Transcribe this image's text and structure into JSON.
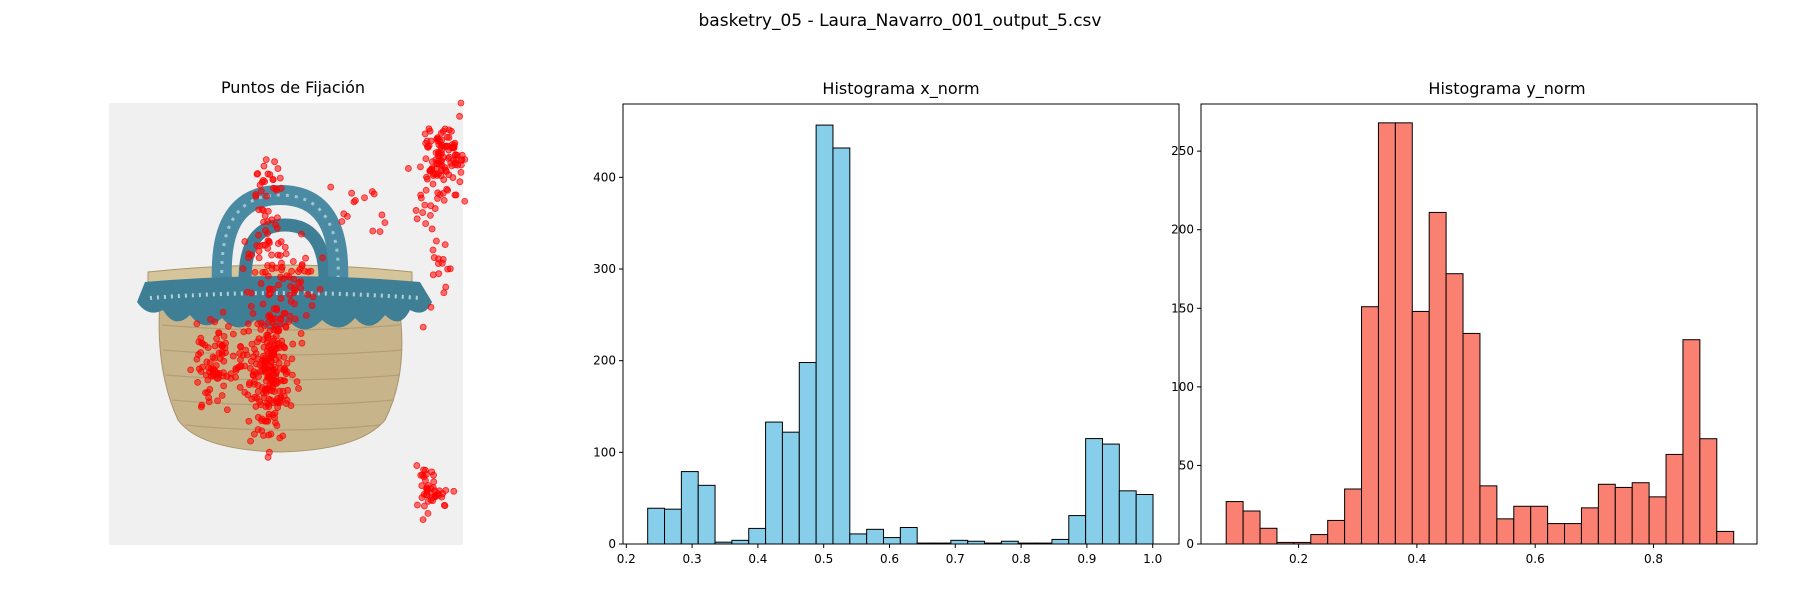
{
  "suptitle": "basketry_05 - Laura_Navarro_001_output_5.csv",
  "colors": {
    "hist_x_fill": "#87ceeb",
    "hist_y_fill": "#fa8072",
    "fixation": "#ff0000",
    "image_bg": "#f0f0f0",
    "basket_straw": "#c8b48a",
    "basket_fabric": "#3f7f96"
  },
  "chart_data": [
    {
      "type": "scatter",
      "title": "Puntos de Fijación",
      "background_image": "basket with blue patterned fabric liner and handles",
      "axes_visible": false,
      "marker": "red semi-transparent circles",
      "note_units": "x_norm / y_norm (0-1, y measured from top of image)",
      "clusters": [
        {
          "x": 0.46,
          "y": 0.6,
          "sx": 0.03,
          "sy": 0.09,
          "n": 220
        },
        {
          "x": 0.29,
          "y": 0.58,
          "sx": 0.025,
          "sy": 0.05,
          "n": 70
        },
        {
          "x": 0.38,
          "y": 0.6,
          "sx": 0.04,
          "sy": 0.04,
          "n": 40
        },
        {
          "x": 0.45,
          "y": 0.2,
          "sx": 0.02,
          "sy": 0.07,
          "n": 40
        },
        {
          "x": 0.44,
          "y": 0.36,
          "sx": 0.05,
          "sy": 0.03,
          "n": 30
        },
        {
          "x": 0.53,
          "y": 0.42,
          "sx": 0.03,
          "sy": 0.04,
          "n": 30
        },
        {
          "x": 0.95,
          "y": 0.12,
          "sx": 0.03,
          "sy": 0.04,
          "n": 90
        },
        {
          "x": 0.91,
          "y": 0.18,
          "sx": 0.02,
          "sy": 0.05,
          "n": 30
        },
        {
          "x": 0.92,
          "y": 0.4,
          "sx": 0.02,
          "sy": 0.09,
          "n": 20
        },
        {
          "x": 0.91,
          "y": 0.88,
          "sx": 0.02,
          "sy": 0.03,
          "n": 45
        },
        {
          "x": 0.7,
          "y": 0.25,
          "sx": 0.05,
          "sy": 0.03,
          "n": 14
        }
      ]
    },
    {
      "type": "bar",
      "title": "Histograma x_norm",
      "xlim": [
        0.195,
        1.04
      ],
      "ylim": [
        0,
        480
      ],
      "xticks": [
        "0.2",
        "0.3",
        "0.4",
        "0.5",
        "0.6",
        "0.7",
        "0.8",
        "0.9",
        "1.0"
      ],
      "xtick_values": [
        0.2,
        0.3,
        0.4,
        0.5,
        0.6,
        0.7,
        0.8,
        0.9,
        1.0
      ],
      "yticks": [
        "0",
        "100",
        "200",
        "300",
        "400"
      ],
      "ytick_values": [
        0,
        100,
        200,
        300,
        400
      ],
      "bin_start": 0.2325,
      "bin_width": 0.0256,
      "values": [
        39,
        38,
        79,
        64,
        2,
        4,
        17,
        133,
        122,
        198,
        457,
        432,
        11,
        16,
        7,
        18,
        1,
        1,
        4,
        3,
        1,
        3,
        1,
        1,
        5,
        31,
        115,
        109,
        58,
        54
      ]
    },
    {
      "type": "bar",
      "title": "Histograma y_norm",
      "xlim": [
        0.035,
        0.975
      ],
      "ylim": [
        0,
        280
      ],
      "xticks": [
        "0.2",
        "0.4",
        "0.6",
        "0.8"
      ],
      "xtick_values": [
        0.2,
        0.4,
        0.6,
        0.8
      ],
      "yticks": [
        "0",
        "50",
        "100",
        "150",
        "200",
        "250"
      ],
      "ytick_values": [
        0,
        50,
        100,
        150,
        200,
        250
      ],
      "bin_start": 0.0776,
      "bin_width": 0.0286,
      "values": [
        27,
        21,
        10,
        1,
        1,
        6,
        15,
        35,
        151,
        268,
        268,
        148,
        211,
        172,
        134,
        37,
        16,
        24,
        24,
        13,
        13,
        23,
        38,
        36,
        39,
        30,
        57,
        130,
        67,
        8
      ]
    }
  ]
}
